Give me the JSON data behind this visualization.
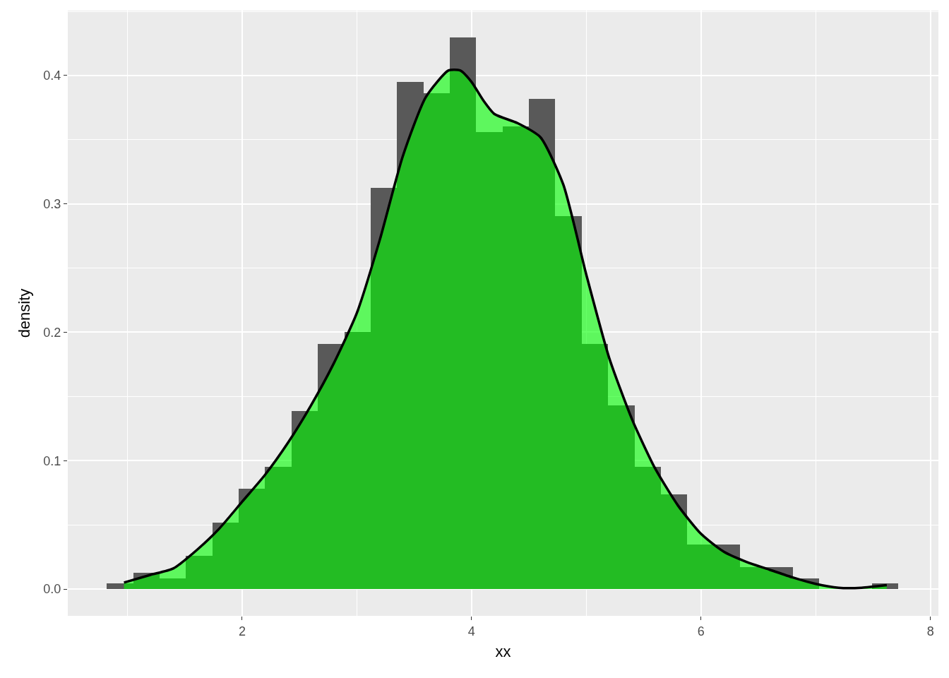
{
  "chart_data": {
    "type": "histogram",
    "xlabel": "xx",
    "ylabel": "density",
    "bins": [
      0.82,
      1.05,
      1.28,
      1.51,
      1.74,
      1.97,
      2.2,
      2.43,
      2.66,
      2.89,
      3.12,
      3.35,
      3.58,
      3.81,
      4.04,
      4.27,
      4.5,
      4.73,
      4.96,
      5.19,
      5.42,
      5.65,
      5.88,
      6.11,
      6.34,
      6.57,
      6.8,
      7.03,
      7.26,
      7.49,
      7.72
    ],
    "values": [
      0.0044,
      0.0127,
      0.0084,
      0.026,
      0.0517,
      0.078,
      0.0952,
      0.1387,
      0.191,
      0.2,
      0.3125,
      0.395,
      0.3862,
      0.4297,
      0.3562,
      0.3604,
      0.3818,
      0.2905,
      0.1911,
      0.1431,
      0.0952,
      0.0737,
      0.0347,
      0.0347,
      0.0171,
      0.0171,
      0.0083,
      0,
      0,
      0.0044
    ],
    "color": "#595959",
    "series": [
      {
        "type": "area",
        "color": "#00ff00",
        "x": [
          0.97,
          1.2,
          1.4,
          1.6,
          1.8,
          2.0,
          2.2,
          2.4,
          2.6,
          2.8,
          3.0,
          3.2,
          3.4,
          3.6,
          3.8,
          3.9,
          4.0,
          4.1,
          4.2,
          4.4,
          4.6,
          4.8,
          5.0,
          5.2,
          5.4,
          5.6,
          5.8,
          6.0,
          6.2,
          6.4,
          6.6,
          6.8,
          7.0,
          7.2,
          7.4,
          7.62
        ],
        "values": [
          0.005,
          0.011,
          0.016,
          0.03,
          0.047,
          0.068,
          0.089,
          0.114,
          0.143,
          0.176,
          0.215,
          0.272,
          0.337,
          0.383,
          0.404,
          0.404,
          0.395,
          0.381,
          0.37,
          0.363,
          0.352,
          0.315,
          0.245,
          0.18,
          0.132,
          0.094,
          0.065,
          0.043,
          0.029,
          0.021,
          0.015,
          0.009,
          0.004,
          0.001,
          0.001,
          0.003
        ]
      }
    ],
    "xlim": [
      0.48,
      8.07
    ],
    "ylim": [
      -0.0209,
      0.4506
    ],
    "xticks": [
      2,
      4,
      6,
      8
    ],
    "yticks": [
      {
        "value": 0,
        "label": "0.0"
      },
      {
        "value": 0.1,
        "label": "0.1"
      },
      {
        "value": 0.2,
        "label": "0.2"
      },
      {
        "value": 0.3,
        "label": "0.3"
      },
      {
        "value": 0.4,
        "label": "0.4"
      }
    ],
    "grid": true
  }
}
